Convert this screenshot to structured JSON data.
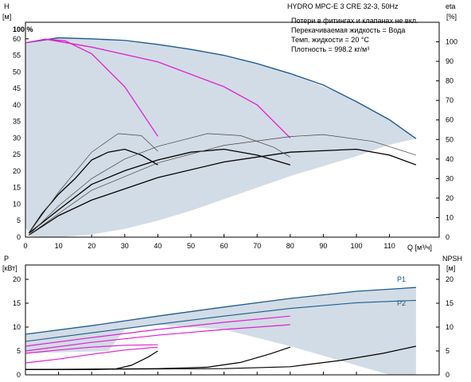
{
  "chart_data": {
    "type": "line",
    "info_box": {
      "title": "HYDRO MPC-E 3 CRE 32-3, 50Hz",
      "lines": [
        "Потери в фитингах и клапанах не вкл.",
        "Перекачиваемая жидкость = Вода",
        "Темп. жидкости = 20 °C",
        "Плотность = 998.2 кг/м³"
      ]
    },
    "annotation": "100 %",
    "x_axis": {
      "label": "Q [м³/ч]",
      "range": [
        0,
        125
      ],
      "ticks": [
        0,
        10,
        20,
        30,
        40,
        50,
        60,
        70,
        80,
        90,
        100,
        110
      ]
    },
    "top": {
      "y_left": {
        "label_line1": "H",
        "label_line2": "[м]",
        "range": [
          0,
          65
        ],
        "ticks": [
          0,
          5,
          10,
          15,
          20,
          25,
          30,
          35,
          40,
          45,
          50,
          55,
          60
        ]
      },
      "y_right": {
        "label_line1": "eta",
        "label_line2": "[%]",
        "range": [
          0,
          110
        ],
        "ticks": [
          0,
          10,
          20,
          30,
          40,
          50,
          60,
          70,
          80,
          90,
          100
        ]
      },
      "colors": {
        "envelope": "#d2dce6",
        "max_curve": "#1f5b8c",
        "partial": "#e020d0",
        "eta": "#000000",
        "eta_thin": "#444444"
      },
      "envelope": [
        [
          0,
          58.5
        ],
        [
          10,
          60.3
        ],
        [
          20,
          60
        ],
        [
          40,
          58.3
        ],
        [
          60,
          55
        ],
        [
          80,
          49.5
        ],
        [
          95,
          43.5
        ],
        [
          110,
          35.5
        ],
        [
          118,
          29.8
        ],
        [
          110,
          28
        ],
        [
          100,
          24.5
        ],
        [
          90,
          21.5
        ],
        [
          80,
          18.5
        ],
        [
          70,
          15
        ],
        [
          60,
          11.5
        ],
        [
          50,
          8
        ],
        [
          40,
          5
        ],
        [
          30,
          2.5
        ],
        [
          20,
          0.8
        ],
        [
          10,
          0
        ],
        [
          2,
          0
        ],
        [
          0,
          3
        ]
      ],
      "max_curve": [
        [
          0,
          58.8
        ],
        [
          10,
          60.3
        ],
        [
          20,
          60
        ],
        [
          30,
          59.5
        ],
        [
          40,
          58.3
        ],
        [
          50,
          56.8
        ],
        [
          60,
          55
        ],
        [
          70,
          52.5
        ],
        [
          80,
          49.5
        ],
        [
          90,
          46
        ],
        [
          100,
          41
        ],
        [
          110,
          35.5
        ],
        [
          118,
          29.8
        ]
      ],
      "partial_curves": [
        [
          [
            0,
            58.8
          ],
          [
            6,
            59.9
          ],
          [
            12,
            59.4
          ],
          [
            20,
            55.5
          ],
          [
            30,
            45.5
          ],
          [
            40,
            30.5
          ]
        ],
        [
          [
            6,
            59.9
          ],
          [
            20,
            57.5
          ],
          [
            40,
            53
          ],
          [
            60,
            45.5
          ],
          [
            70,
            40
          ],
          [
            80,
            30
          ]
        ]
      ],
      "eta_curves": [
        {
          "weight": "bold",
          "points": [
            [
              1,
              2
            ],
            [
              5,
              12
            ],
            [
              10,
              22
            ],
            [
              15,
              30
            ],
            [
              20,
              39.5
            ],
            [
              25,
              43.5
            ],
            [
              30,
              45
            ],
            [
              35,
              42
            ],
            [
              40,
              37
            ]
          ]
        },
        {
          "weight": "bold",
          "points": [
            [
              1,
              2
            ],
            [
              10,
              14
            ],
            [
              20,
              27
            ],
            [
              30,
              34
            ],
            [
              40,
              39.5
            ],
            [
              50,
              43.5
            ],
            [
              60,
              45
            ],
            [
              70,
              42
            ],
            [
              80,
              37
            ]
          ]
        },
        {
          "weight": "bold",
          "points": [
            [
              1,
              1
            ],
            [
              10,
              11
            ],
            [
              20,
              19
            ],
            [
              40,
              30.5
            ],
            [
              60,
              38.5
            ],
            [
              80,
              43.5
            ],
            [
              100,
              45
            ],
            [
              110,
              42
            ],
            [
              118,
              37
            ]
          ]
        },
        {
          "weight": "thin",
          "points": [
            [
              1,
              2
            ],
            [
              10,
              23
            ],
            [
              20,
              43.5
            ],
            [
              28,
              53
            ],
            [
              35,
              52
            ],
            [
              40,
              44
            ]
          ]
        },
        {
          "weight": "thin",
          "points": [
            [
              1,
              1
            ],
            [
              10,
              16
            ],
            [
              20,
              30
            ],
            [
              30,
              40
            ],
            [
              40,
              46.5
            ],
            [
              55,
              53
            ],
            [
              65,
              52
            ],
            [
              75,
              46
            ],
            [
              80,
              41
            ]
          ]
        },
        {
          "weight": "thin",
          "points": [
            [
              1,
              1
            ],
            [
              10,
              12
            ],
            [
              20,
              24
            ],
            [
              40,
              38
            ],
            [
              60,
              47
            ],
            [
              80,
              51.5
            ],
            [
              90,
              52.5
            ],
            [
              105,
              49
            ],
            [
              118,
              42
            ]
          ]
        }
      ]
    },
    "bottom": {
      "y_left": {
        "label_line1": "P",
        "label_line2": "[кВт]",
        "range": [
          0,
          23
        ],
        "ticks": [
          0,
          5,
          10,
          15,
          20
        ]
      },
      "y_right": {
        "label_line1": "NPSH",
        "label_line2": "[м]",
        "range": [
          0,
          23
        ],
        "ticks": [
          0,
          5,
          10,
          15,
          20
        ]
      },
      "series_labels": [
        "P1",
        "P2"
      ],
      "envelope": [
        [
          0,
          8.5
        ],
        [
          20,
          10.3
        ],
        [
          40,
          12.3
        ],
        [
          60,
          14.2
        ],
        [
          80,
          16
        ],
        [
          100,
          17.5
        ],
        [
          118,
          18.3
        ],
        [
          118,
          0
        ],
        [
          110,
          0
        ],
        [
          100,
          2
        ],
        [
          80,
          6
        ],
        [
          60,
          9.5
        ],
        [
          40,
          10.5
        ],
        [
          30,
          9.5
        ],
        [
          25,
          5
        ],
        [
          0,
          4.5
        ]
      ],
      "max_P1": [
        [
          0,
          8.5
        ],
        [
          20,
          10.3
        ],
        [
          40,
          12.3
        ],
        [
          60,
          14.2
        ],
        [
          80,
          16
        ],
        [
          100,
          17.5
        ],
        [
          118,
          18.3
        ]
      ],
      "max_P2": [
        [
          0,
          7
        ],
        [
          20,
          8.8
        ],
        [
          40,
          10.6
        ],
        [
          60,
          12.3
        ],
        [
          80,
          13.9
        ],
        [
          100,
          15.1
        ],
        [
          118,
          15.6
        ]
      ],
      "partial_P1": [
        [
          [
            0,
            4.5
          ],
          [
            10,
            5.2
          ],
          [
            20,
            5.8
          ],
          [
            30,
            6.2
          ],
          [
            40,
            6.3
          ]
        ],
        [
          [
            0,
            6
          ],
          [
            20,
            7.8
          ],
          [
            40,
            9.5
          ],
          [
            60,
            11
          ],
          [
            80,
            12.3
          ]
        ]
      ],
      "partial_P2": [
        [
          [
            0,
            2.5
          ],
          [
            10,
            3.3
          ],
          [
            20,
            4.3
          ],
          [
            30,
            5.2
          ],
          [
            40,
            5.8
          ]
        ],
        [
          [
            0,
            5
          ],
          [
            20,
            6.8
          ],
          [
            40,
            8.3
          ],
          [
            60,
            9.5
          ],
          [
            80,
            10.5
          ]
        ]
      ],
      "npsh": [
        [
          [
            0,
            1.1
          ],
          [
            20,
            1.1
          ],
          [
            27,
            1.2
          ],
          [
            32,
            2
          ],
          [
            37,
            3.7
          ],
          [
            40,
            5
          ]
        ],
        [
          [
            0,
            1.1
          ],
          [
            40,
            1.3
          ],
          [
            55,
            1.6
          ],
          [
            65,
            2.6
          ],
          [
            74,
            4.4
          ],
          [
            80,
            5.8
          ]
        ],
        [
          [
            0,
            1.1
          ],
          [
            60,
            1.3
          ],
          [
            80,
            1.7
          ],
          [
            95,
            3
          ],
          [
            108,
            4.5
          ],
          [
            118,
            6
          ]
        ]
      ]
    }
  }
}
